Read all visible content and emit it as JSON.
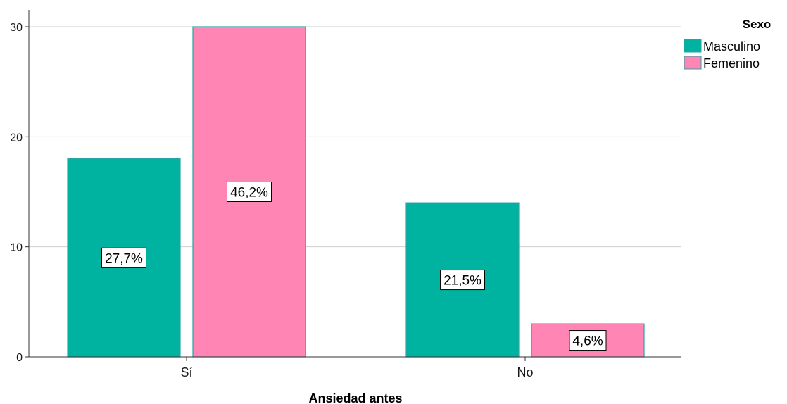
{
  "chart_data": {
    "type": "bar",
    "xlabel": "Ansiedad antes",
    "ylabel": "",
    "ylim": [
      0,
      30
    ],
    "yticks": [
      0,
      10,
      20,
      30
    ],
    "grid": true,
    "categories": [
      "Sí",
      "No"
    ],
    "legend": {
      "title": "Sexo",
      "position": "right"
    },
    "series": [
      {
        "name": "Masculino",
        "color": "#00b3a0",
        "values": [
          18,
          14
        ],
        "data_labels": [
          "27,7%",
          "21,5%"
        ]
      },
      {
        "name": "Femenino",
        "color": "#ff85b4",
        "values": [
          30,
          3
        ],
        "data_labels": [
          "46,2%",
          "4,6%"
        ]
      }
    ]
  }
}
